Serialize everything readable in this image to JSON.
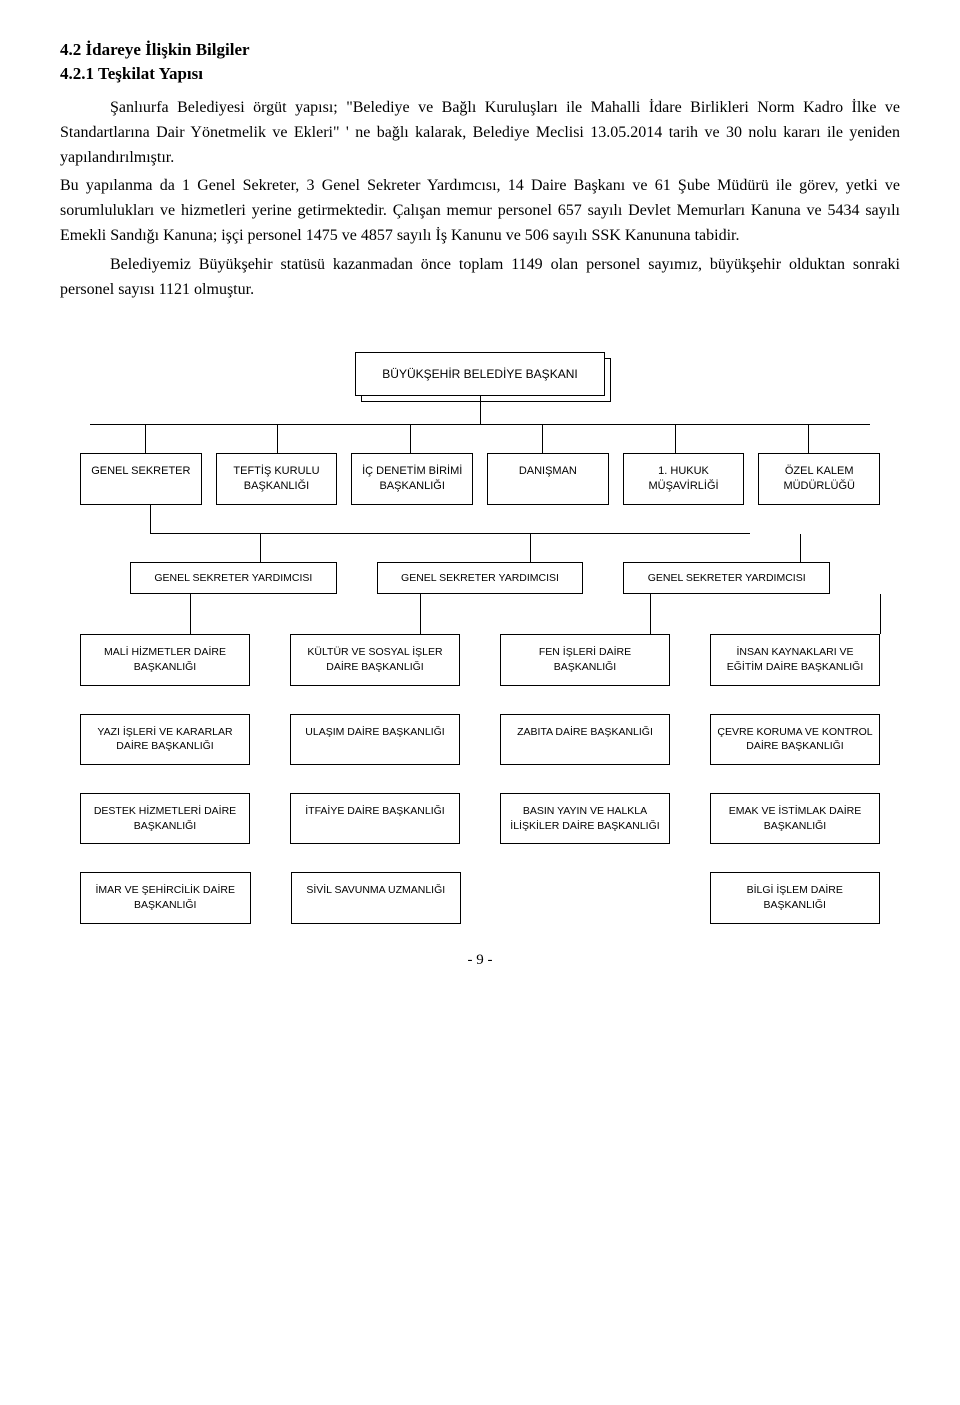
{
  "heading1": "4.2 İdareye İlişkin Bilgiler",
  "heading2": "4.2.1 Teşkilat Yapısı",
  "para1": "Şanlıurfa Belediyesi örgüt yapısı; \"Belediye ve Bağlı Kuruluşları ile Mahalli İdare Birlikleri Norm Kadro İlke ve Standartlarına Dair Yönetmelik ve Ekleri\" ' ne bağlı kalarak, Belediye Meclisi 13.05.2014 tarih ve 30 nolu kararı ile yeniden yapılandırılmıştır.",
  "para2": "Bu yapılanma da 1 Genel Sekreter, 3 Genel Sekreter Yardımcısı, 14 Daire Başkanı ve 61 Şube Müdürü ile görev, yetki ve sorumlulukları ve hizmetleri yerine getirmektedir. Çalışan memur personel 657 sayılı Devlet Memurları Kanuna ve 5434 sayılı Emekli Sandığı Kanuna; işçi personel 1475 ve 4857 sayılı İş Kanunu ve 506 sayılı SSK Kanununa tabidir.",
  "para3": "Belediyemiz Büyükşehir statüsü kazanmadan önce toplam 1149 olan personel sayımız, büyükşehir olduktan sonraki personel sayısı 1121 olmuştur.",
  "chart": {
    "top": "BÜYÜKŞEHİR BELEDİYE BAŞKANI",
    "row2": [
      "GENEL SEKRETER",
      "TEFTİŞ KURULU\nBAŞKANLIĞI",
      "İÇ DENETİM BİRİMİ\nBAŞKANLIĞI",
      "DANIŞMAN",
      "1. HUKUK\nMÜŞAVİRLİĞİ",
      "ÖZEL KALEM\nMÜDÜRLÜĞÜ"
    ],
    "row3": [
      "GENEL SEKRETER YARDIMCISI",
      "GENEL SEKRETER YARDIMCISI",
      "GENEL SEKRETER YARDIMCISI"
    ],
    "deptRows": [
      [
        "MALİ HİZMETLER DAİRE\nBAŞKANLIĞI",
        "KÜLTÜR VE SOSYAL İŞLER\nDAİRE BAŞKANLIĞI",
        "FEN İŞLERİ DAİRE\nBAŞKANLIĞI",
        "İNSAN KAYNAKLARI VE\nEĞİTİM DAİRE BAŞKANLIĞI"
      ],
      [
        "YAZI İŞLERİ VE KARARLAR\nDAİRE BAŞKANLIĞI",
        "ULAŞIM DAİRE BAŞKANLIĞI",
        "ZABITA DAİRE BAŞKANLIĞI",
        "ÇEVRE KORUMA VE KONTROL\nDAİRE BAŞKANLIĞI"
      ],
      [
        "DESTEK HİZMETLERİ DAİRE\nBAŞKANLIĞI",
        "İTFAİYE DAİRE BAŞKANLIĞI",
        "BASIN YAYIN VE HALKLA\nİLİŞKİLER DAİRE BAŞKANLIĞI",
        "EMAK VE İSTİMLAK DAİRE\nBAŞKANLIĞI"
      ],
      [
        "İMAR VE ŞEHİRCİLİK DAİRE\nBAŞKANLIĞI",
        "SİVİL SAVUNMA UZMANLIĞI",
        null,
        "BİLGİ İŞLEM DAİRE\nBAŞKANLIĞI"
      ]
    ]
  },
  "pageNum": "- 9 -"
}
